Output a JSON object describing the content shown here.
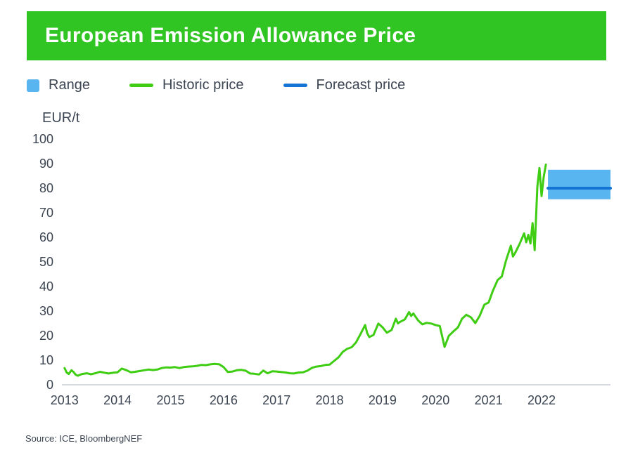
{
  "title": "European Emission Allowance Price",
  "colors": {
    "banner_green": "#31c524",
    "historic_green": "#3ecd13",
    "range_blue": "#58b5f0",
    "forecast_blue": "#1474d4",
    "text": "#3c4552",
    "axis_line": "#c9ced6"
  },
  "legend": [
    {
      "label": "Range"
    },
    {
      "label": "Historic price"
    },
    {
      "label": "Forecast price"
    }
  ],
  "y_axis_unit": "EUR/t",
  "source": "Source: ICE, BloombergNEF",
  "chart_data": {
    "type": "line",
    "title": "European Emission Allowance Price",
    "xlabel": "",
    "ylabel": "EUR/t",
    "xlim": [
      2012.95,
      2023.3
    ],
    "ylim": [
      0,
      100
    ],
    "x_ticks": [
      2013,
      2014,
      2015,
      2016,
      2017,
      2018,
      2019,
      2020,
      2021,
      2022
    ],
    "y_ticks": [
      0,
      10,
      20,
      30,
      40,
      50,
      60,
      70,
      80,
      90,
      100
    ],
    "grid": false,
    "legend_position": "top",
    "band": {
      "name": "Range",
      "color": "#58b5f0",
      "x": [
        2022.12,
        2023.3
      ],
      "low": 75.5,
      "high": 87.5
    },
    "series": [
      {
        "name": "Historic price",
        "color": "#3ecd13",
        "width": 3,
        "points": [
          [
            2013.0,
            6.8
          ],
          [
            2013.04,
            5.0
          ],
          [
            2013.08,
            4.4
          ],
          [
            2013.13,
            5.9
          ],
          [
            2013.17,
            5.2
          ],
          [
            2013.21,
            4.1
          ],
          [
            2013.25,
            3.7
          ],
          [
            2013.33,
            4.4
          ],
          [
            2013.42,
            4.7
          ],
          [
            2013.5,
            4.3
          ],
          [
            2013.58,
            4.7
          ],
          [
            2013.67,
            5.3
          ],
          [
            2013.75,
            4.9
          ],
          [
            2013.83,
            4.6
          ],
          [
            2013.92,
            4.9
          ],
          [
            2014.0,
            5.1
          ],
          [
            2014.08,
            6.6
          ],
          [
            2014.17,
            5.9
          ],
          [
            2014.25,
            5.1
          ],
          [
            2014.33,
            5.3
          ],
          [
            2014.42,
            5.6
          ],
          [
            2014.5,
            5.9
          ],
          [
            2014.58,
            6.2
          ],
          [
            2014.67,
            6.0
          ],
          [
            2014.75,
            6.2
          ],
          [
            2014.83,
            6.8
          ],
          [
            2014.92,
            7.1
          ],
          [
            2015.0,
            7.0
          ],
          [
            2015.08,
            7.2
          ],
          [
            2015.17,
            6.8
          ],
          [
            2015.25,
            7.2
          ],
          [
            2015.33,
            7.4
          ],
          [
            2015.42,
            7.5
          ],
          [
            2015.5,
            7.7
          ],
          [
            2015.58,
            8.1
          ],
          [
            2015.67,
            8.0
          ],
          [
            2015.75,
            8.3
          ],
          [
            2015.83,
            8.5
          ],
          [
            2015.92,
            8.3
          ],
          [
            2016.0,
            7.2
          ],
          [
            2016.08,
            5.2
          ],
          [
            2016.17,
            5.4
          ],
          [
            2016.25,
            5.9
          ],
          [
            2016.33,
            6.1
          ],
          [
            2016.42,
            5.7
          ],
          [
            2016.5,
            4.6
          ],
          [
            2016.58,
            4.5
          ],
          [
            2016.67,
            4.2
          ],
          [
            2016.75,
            5.8
          ],
          [
            2016.83,
            4.7
          ],
          [
            2016.92,
            5.5
          ],
          [
            2017.0,
            5.4
          ],
          [
            2017.08,
            5.2
          ],
          [
            2017.17,
            5.0
          ],
          [
            2017.25,
            4.7
          ],
          [
            2017.33,
            4.6
          ],
          [
            2017.42,
            5.0
          ],
          [
            2017.5,
            5.1
          ],
          [
            2017.58,
            5.7
          ],
          [
            2017.67,
            6.9
          ],
          [
            2017.75,
            7.4
          ],
          [
            2017.83,
            7.6
          ],
          [
            2017.92,
            8.1
          ],
          [
            2018.0,
            8.2
          ],
          [
            2018.08,
            9.6
          ],
          [
            2018.17,
            11.2
          ],
          [
            2018.25,
            13.4
          ],
          [
            2018.33,
            14.6
          ],
          [
            2018.42,
            15.3
          ],
          [
            2018.5,
            17.3
          ],
          [
            2018.58,
            20.5
          ],
          [
            2018.67,
            24.3
          ],
          [
            2018.71,
            21.0
          ],
          [
            2018.75,
            19.4
          ],
          [
            2018.83,
            20.3
          ],
          [
            2018.92,
            24.9
          ],
          [
            2019.0,
            23.4
          ],
          [
            2019.08,
            21.2
          ],
          [
            2019.17,
            22.3
          ],
          [
            2019.25,
            26.9
          ],
          [
            2019.29,
            25.0
          ],
          [
            2019.33,
            25.6
          ],
          [
            2019.42,
            26.6
          ],
          [
            2019.5,
            29.6
          ],
          [
            2019.54,
            28.0
          ],
          [
            2019.58,
            29.0
          ],
          [
            2019.67,
            26.2
          ],
          [
            2019.75,
            24.6
          ],
          [
            2019.83,
            25.2
          ],
          [
            2019.92,
            24.9
          ],
          [
            2020.0,
            24.3
          ],
          [
            2020.08,
            23.9
          ],
          [
            2020.17,
            15.4
          ],
          [
            2020.25,
            19.9
          ],
          [
            2020.33,
            21.6
          ],
          [
            2020.42,
            23.3
          ],
          [
            2020.5,
            26.9
          ],
          [
            2020.58,
            28.5
          ],
          [
            2020.67,
            27.4
          ],
          [
            2020.75,
            25.1
          ],
          [
            2020.83,
            28.0
          ],
          [
            2020.92,
            32.6
          ],
          [
            2021.0,
            33.5
          ],
          [
            2021.08,
            38.2
          ],
          [
            2021.17,
            42.6
          ],
          [
            2021.25,
            44.1
          ],
          [
            2021.33,
            50.6
          ],
          [
            2021.42,
            56.6
          ],
          [
            2021.46,
            52.2
          ],
          [
            2021.5,
            53.6
          ],
          [
            2021.58,
            57.1
          ],
          [
            2021.67,
            61.6
          ],
          [
            2021.71,
            58.0
          ],
          [
            2021.75,
            61.0
          ],
          [
            2021.79,
            57.5
          ],
          [
            2021.83,
            65.8
          ],
          [
            2021.87,
            54.8
          ],
          [
            2021.92,
            80.6
          ],
          [
            2021.96,
            88.2
          ],
          [
            2022.0,
            76.8
          ],
          [
            2022.04,
            84.5
          ],
          [
            2022.08,
            89.6
          ]
        ]
      },
      {
        "name": "Forecast price",
        "color": "#1474d4",
        "width": 4,
        "points": [
          [
            2022.12,
            80
          ],
          [
            2023.3,
            80
          ]
        ]
      }
    ]
  }
}
